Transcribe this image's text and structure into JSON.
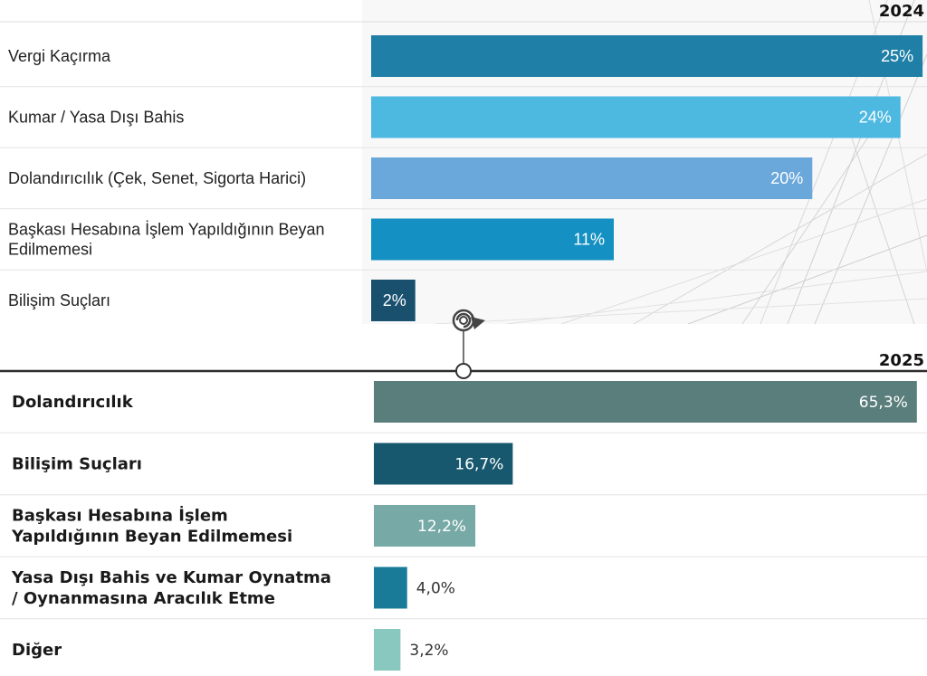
{
  "chart_data": [
    {
      "type": "bar",
      "orientation": "horizontal",
      "title": "2024",
      "categories": [
        [
          "Vergi Kaçırma"
        ],
        [
          "Kumar / Yasa Dışı Bahis"
        ],
        [
          "Dolandırıcılık (Çek, Senet, Sigorta Harici)"
        ],
        [
          "Başkası Hesabına İşlem Yapıldığının Beyan",
          "Edilmemesi"
        ],
        [
          "Bilişim Suçları"
        ]
      ],
      "values": [
        25,
        24,
        20,
        11,
        2
      ],
      "value_labels": [
        "25%",
        "24%",
        "20%",
        "11%",
        "2%"
      ],
      "colors": [
        "#1f7fa6",
        "#4db8e0",
        "#6aa7da",
        "#1590c2",
        "#18506e"
      ],
      "xlim": [
        0,
        25.2
      ],
      "grid": false
    },
    {
      "type": "bar",
      "orientation": "horizontal",
      "title": "2025",
      "categories": [
        [
          "Dolandırıcılık"
        ],
        [
          "Bilişim Suçları"
        ],
        [
          "Başkası Hesabına İşlem",
          "Yapıldığının Beyan Edilmemesi"
        ],
        [
          "Yasa Dışı Bahis ve Kumar Oynatma",
          "/ Oynanmasına Aracılık Etme"
        ],
        [
          "Diğer"
        ]
      ],
      "values": [
        65.3,
        16.7,
        12.2,
        4.0,
        3.2
      ],
      "value_labels": [
        "65,3%",
        "16,7%",
        "12,2%",
        "4,0%",
        "3,2%"
      ],
      "colors": [
        "#5a7e7b",
        "#17586e",
        "#77aaa6",
        "#1a7b99",
        "#88c8bf"
      ],
      "xlim": [
        0,
        66.3
      ],
      "grid": false
    }
  ],
  "icons": {
    "connector": "refresh-arrow-icon"
  }
}
